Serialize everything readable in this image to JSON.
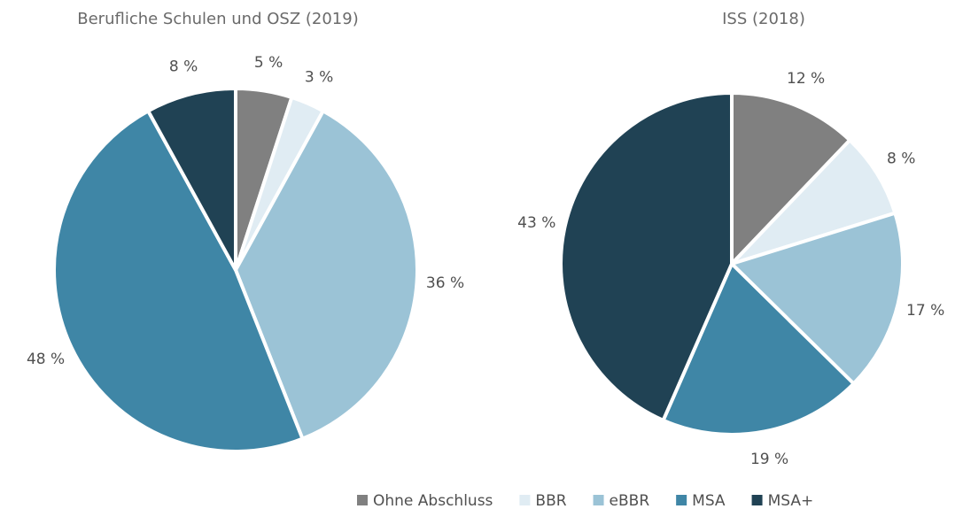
{
  "chart_data": [
    {
      "type": "pie",
      "title": "Berufliche Schulen und OSZ (2019)",
      "values": [
        5,
        3,
        36,
        48,
        8
      ],
      "value_labels": [
        "5 %",
        "3 %",
        "36 %",
        "48 %",
        "8 %"
      ]
    },
    {
      "type": "pie",
      "title": "ISS (2018)",
      "values": [
        12,
        8,
        17,
        19,
        43
      ],
      "value_labels": [
        "12 %",
        "8 %",
        "17 %",
        "19 %",
        "43 %"
      ]
    }
  ],
  "legend": {
    "categories": [
      "Ohne Abschluss",
      "BBR",
      "eBBR",
      "MSA",
      "MSA+"
    ],
    "colors": [
      "#808080",
      "#e0ecf3",
      "#9bc3d6",
      "#3f86a6",
      "#204254"
    ]
  }
}
